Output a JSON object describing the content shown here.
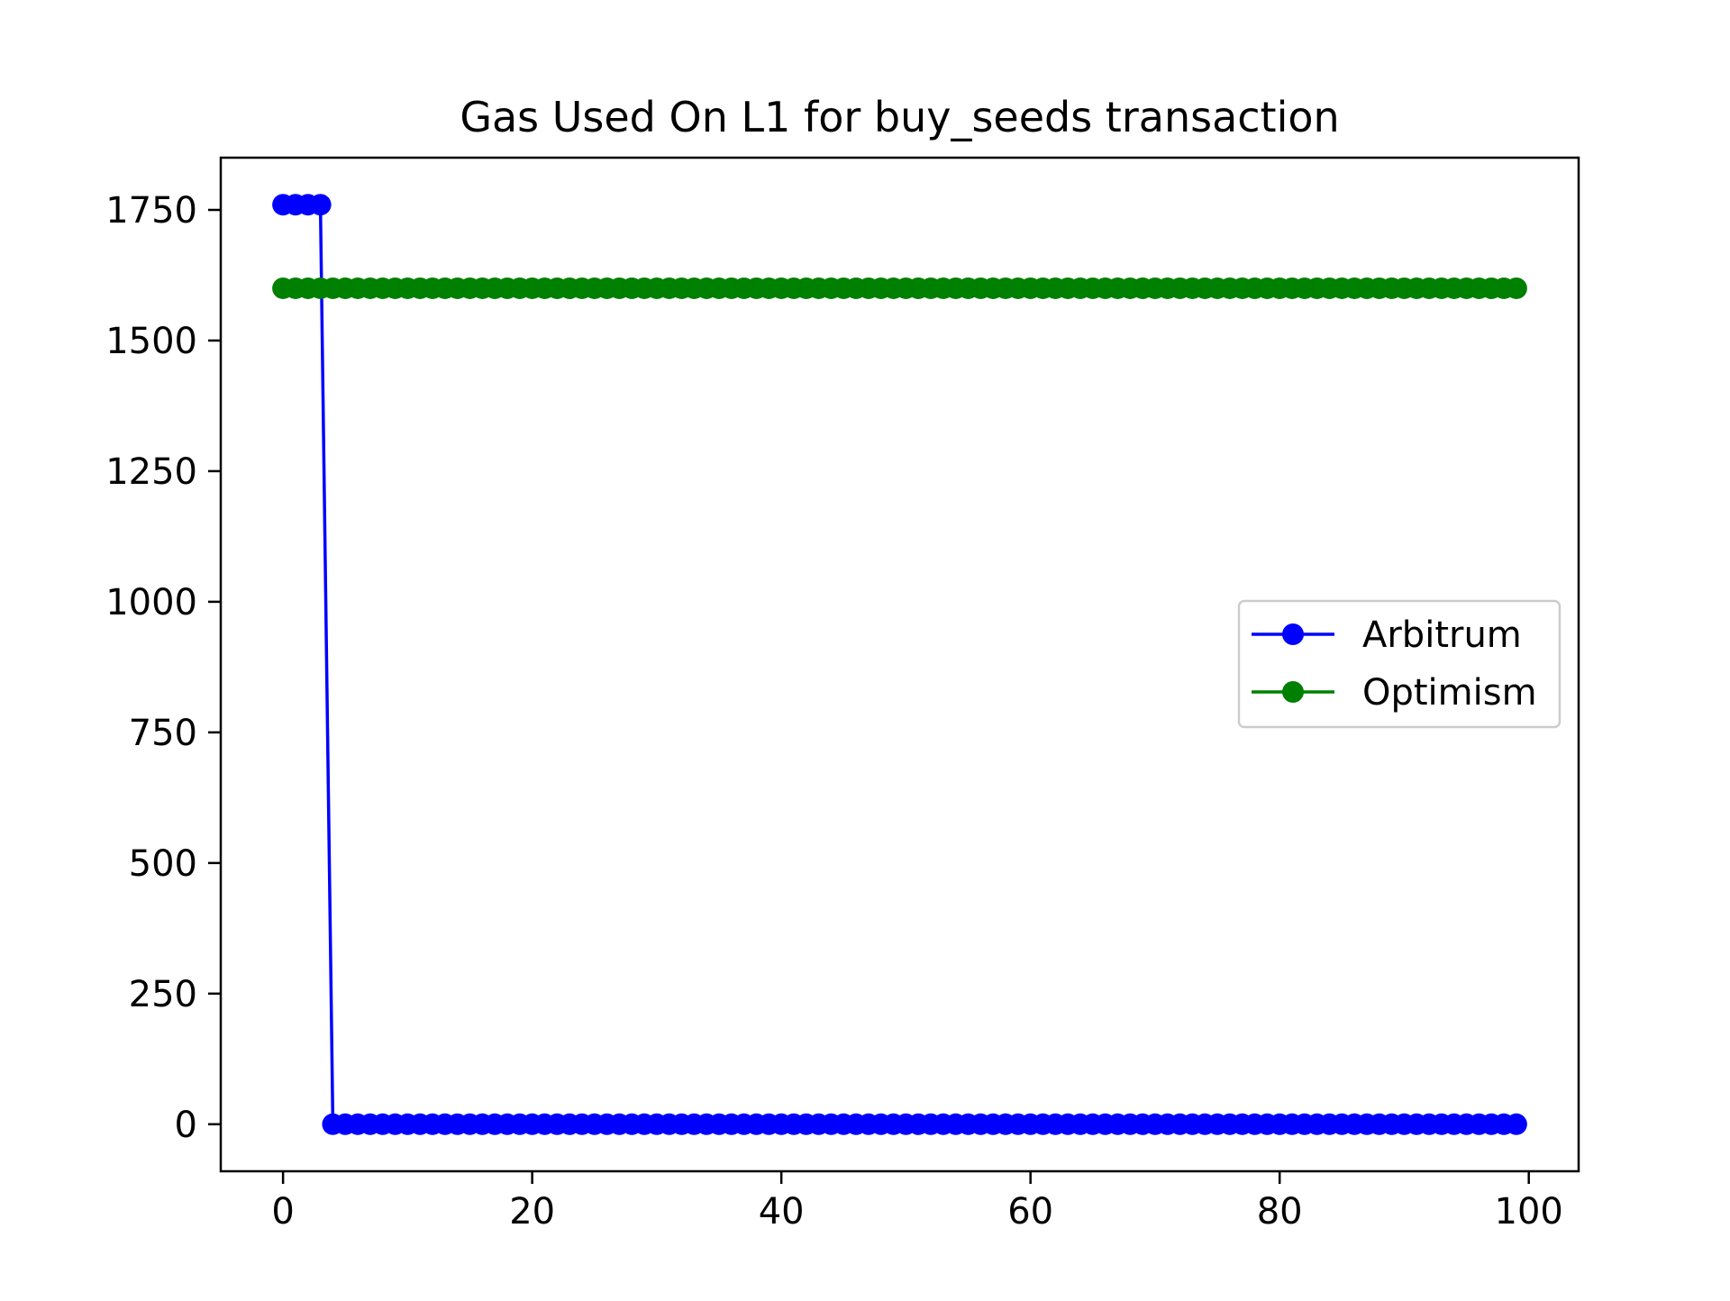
{
  "chart_data": {
    "type": "line",
    "title": "Gas Used On L1 for buy_seeds transaction",
    "xlabel": "",
    "ylabel": "",
    "xlim": [
      -5,
      104
    ],
    "ylim": [
      -90,
      1850
    ],
    "x_ticks": [
      0,
      20,
      40,
      60,
      80,
      100
    ],
    "y_ticks": [
      0,
      250,
      500,
      750,
      1000,
      1250,
      1500,
      1750
    ],
    "grid": false,
    "legend_position": "center-right",
    "series": [
      {
        "name": "Arbitrum",
        "color": "#0000ff",
        "marker": "circle",
        "segments": [
          {
            "x_start": 0,
            "x_end": 3,
            "y": 1760
          },
          {
            "x_start": 4,
            "x_end": 99,
            "y": 0
          }
        ]
      },
      {
        "name": "Optimism",
        "color": "#008000",
        "marker": "circle",
        "segments": [
          {
            "x_start": 0,
            "x_end": 99,
            "y": 1600
          }
        ]
      }
    ]
  }
}
